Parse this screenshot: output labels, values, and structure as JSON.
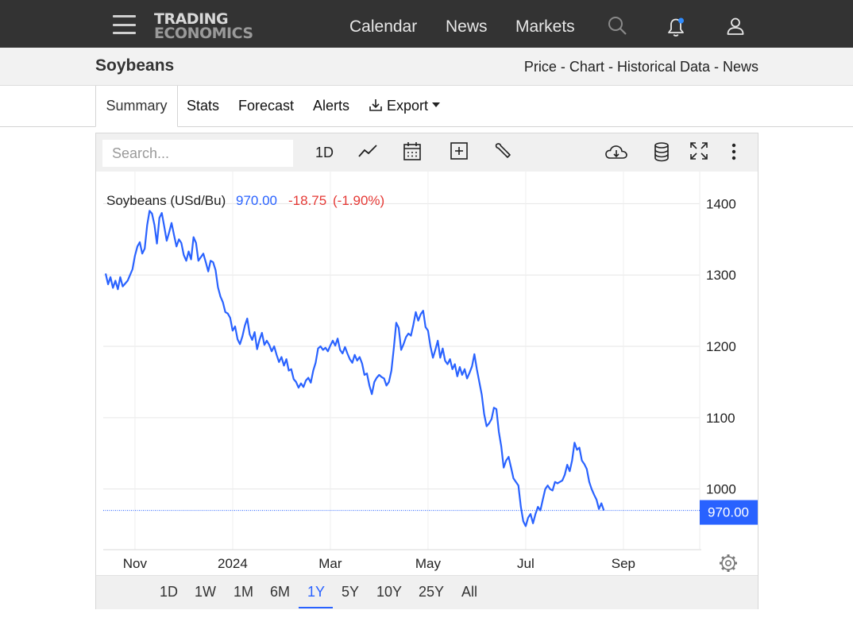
{
  "nav": {
    "logo_line1": "TRADING",
    "logo_line2": "ECONOMICS",
    "links": [
      "Calendar",
      "News",
      "Markets"
    ]
  },
  "header": {
    "title": "Soybeans",
    "links": [
      "Price",
      "Chart",
      "Historical Data",
      "News"
    ],
    "separator": " - "
  },
  "tabs": {
    "summary": "Summary",
    "stats": "Stats",
    "forecast": "Forecast",
    "alerts": "Alerts",
    "export": "Export"
  },
  "toolbar": {
    "search_placeholder": "Search...",
    "interval": "1D"
  },
  "legend": {
    "name": "Soybeans (USd/Bu)",
    "last": "970.00",
    "change": "-18.75",
    "change_pct": "(-1.90%)"
  },
  "ranges": [
    "1D",
    "1W",
    "1M",
    "6M",
    "1Y",
    "5Y",
    "10Y",
    "25Y",
    "All"
  ],
  "active_range": "1Y",
  "colors": {
    "line": "#2962ff",
    "negative": "#e53935",
    "topbar": "#333333",
    "notification_dot": "#2f8cff"
  },
  "chart_data": {
    "type": "line",
    "title": "",
    "ylabel": "",
    "xlabel": "",
    "series_name": "Soybeans (USd/Bu)",
    "ylim": [
      915,
      1445
    ],
    "y_ticks": [
      1000,
      1100,
      1200,
      1300,
      1400
    ],
    "x_ticks": [
      {
        "label": "Nov",
        "value": 0.6
      },
      {
        "label": "2024",
        "value": 2.6
      },
      {
        "label": "Mar",
        "value": 4.6
      },
      {
        "label": "May",
        "value": 6.6
      },
      {
        "label": "Jul",
        "value": 8.6
      },
      {
        "label": "Sep",
        "value": 10.6
      }
    ],
    "x_unit": "months since mid-Oct 2023",
    "current_value": 970.0,
    "grid": true,
    "points": [
      [
        0.0,
        1302
      ],
      [
        0.05,
        1287
      ],
      [
        0.1,
        1297
      ],
      [
        0.15,
        1282
      ],
      [
        0.2,
        1292
      ],
      [
        0.25,
        1280
      ],
      [
        0.3,
        1297
      ],
      [
        0.35,
        1284
      ],
      [
        0.45,
        1292
      ],
      [
        0.55,
        1308
      ],
      [
        0.6,
        1327
      ],
      [
        0.65,
        1340
      ],
      [
        0.7,
        1346
      ],
      [
        0.75,
        1330
      ],
      [
        0.8,
        1337
      ],
      [
        0.85,
        1370
      ],
      [
        0.9,
        1390
      ],
      [
        0.95,
        1386
      ],
      [
        1.0,
        1370
      ],
      [
        1.05,
        1344
      ],
      [
        1.1,
        1380
      ],
      [
        1.15,
        1387
      ],
      [
        1.2,
        1368
      ],
      [
        1.25,
        1348
      ],
      [
        1.3,
        1360
      ],
      [
        1.35,
        1373
      ],
      [
        1.4,
        1356
      ],
      [
        1.45,
        1340
      ],
      [
        1.5,
        1350
      ],
      [
        1.55,
        1345
      ],
      [
        1.6,
        1328
      ],
      [
        1.65,
        1320
      ],
      [
        1.7,
        1333
      ],
      [
        1.75,
        1322
      ],
      [
        1.8,
        1353
      ],
      [
        1.85,
        1345
      ],
      [
        1.9,
        1320
      ],
      [
        1.95,
        1325
      ],
      [
        2.0,
        1330
      ],
      [
        2.05,
        1318
      ],
      [
        2.1,
        1305
      ],
      [
        2.15,
        1320
      ],
      [
        2.2,
        1318
      ],
      [
        2.25,
        1307
      ],
      [
        2.3,
        1283
      ],
      [
        2.35,
        1270
      ],
      [
        2.4,
        1262
      ],
      [
        2.45,
        1248
      ],
      [
        2.5,
        1246
      ],
      [
        2.55,
        1240
      ],
      [
        2.6,
        1222
      ],
      [
        2.65,
        1228
      ],
      [
        2.7,
        1210
      ],
      [
        2.75,
        1203
      ],
      [
        2.8,
        1214
      ],
      [
        2.85,
        1229
      ],
      [
        2.9,
        1239
      ],
      [
        2.95,
        1217
      ],
      [
        3.0,
        1209
      ],
      [
        3.05,
        1220
      ],
      [
        3.1,
        1196
      ],
      [
        3.15,
        1209
      ],
      [
        3.2,
        1219
      ],
      [
        3.25,
        1202
      ],
      [
        3.3,
        1208
      ],
      [
        3.35,
        1202
      ],
      [
        3.4,
        1193
      ],
      [
        3.45,
        1200
      ],
      [
        3.5,
        1188
      ],
      [
        3.55,
        1178
      ],
      [
        3.6,
        1185
      ],
      [
        3.65,
        1173
      ],
      [
        3.7,
        1182
      ],
      [
        3.75,
        1166
      ],
      [
        3.8,
        1168
      ],
      [
        3.85,
        1154
      ],
      [
        3.9,
        1150
      ],
      [
        3.95,
        1142
      ],
      [
        4.0,
        1148
      ],
      [
        4.05,
        1143
      ],
      [
        4.1,
        1152
      ],
      [
        4.15,
        1156
      ],
      [
        4.2,
        1149
      ],
      [
        4.25,
        1166
      ],
      [
        4.3,
        1177
      ],
      [
        4.35,
        1197
      ],
      [
        4.4,
        1200
      ],
      [
        4.45,
        1195
      ],
      [
        4.5,
        1198
      ],
      [
        4.55,
        1193
      ],
      [
        4.6,
        1201
      ],
      [
        4.65,
        1208
      ],
      [
        4.7,
        1201
      ],
      [
        4.75,
        1211
      ],
      [
        4.8,
        1195
      ],
      [
        4.85,
        1190
      ],
      [
        4.9,
        1199
      ],
      [
        4.95,
        1190
      ],
      [
        5.0,
        1182
      ],
      [
        5.05,
        1177
      ],
      [
        5.1,
        1188
      ],
      [
        5.15,
        1180
      ],
      [
        5.2,
        1185
      ],
      [
        5.25,
        1176
      ],
      [
        5.3,
        1160
      ],
      [
        5.35,
        1162
      ],
      [
        5.4,
        1145
      ],
      [
        5.45,
        1133
      ],
      [
        5.5,
        1150
      ],
      [
        5.55,
        1156
      ],
      [
        5.6,
        1160
      ],
      [
        5.65,
        1157
      ],
      [
        5.7,
        1155
      ],
      [
        5.75,
        1145
      ],
      [
        5.8,
        1150
      ],
      [
        5.85,
        1166
      ],
      [
        5.9,
        1198
      ],
      [
        5.95,
        1233
      ],
      [
        6.0,
        1226
      ],
      [
        6.05,
        1195
      ],
      [
        6.1,
        1203
      ],
      [
        6.15,
        1213
      ],
      [
        6.2,
        1218
      ],
      [
        6.25,
        1215
      ],
      [
        6.3,
        1230
      ],
      [
        6.35,
        1248
      ],
      [
        6.4,
        1236
      ],
      [
        6.45,
        1245
      ],
      [
        6.5,
        1250
      ],
      [
        6.55,
        1227
      ],
      [
        6.6,
        1222
      ],
      [
        6.65,
        1200
      ],
      [
        6.7,
        1184
      ],
      [
        6.75,
        1195
      ],
      [
        6.8,
        1208
      ],
      [
        6.85,
        1184
      ],
      [
        6.9,
        1197
      ],
      [
        6.95,
        1180
      ],
      [
        7.0,
        1175
      ],
      [
        7.05,
        1182
      ],
      [
        7.1,
        1168
      ],
      [
        7.15,
        1175
      ],
      [
        7.2,
        1158
      ],
      [
        7.25,
        1171
      ],
      [
        7.3,
        1160
      ],
      [
        7.35,
        1168
      ],
      [
        7.4,
        1155
      ],
      [
        7.45,
        1163
      ],
      [
        7.5,
        1172
      ],
      [
        7.55,
        1189
      ],
      [
        7.6,
        1168
      ],
      [
        7.65,
        1150
      ],
      [
        7.7,
        1132
      ],
      [
        7.75,
        1105
      ],
      [
        7.8,
        1088
      ],
      [
        7.85,
        1092
      ],
      [
        7.9,
        1098
      ],
      [
        7.95,
        1114
      ],
      [
        8.0,
        1112
      ],
      [
        8.05,
        1080
      ],
      [
        8.1,
        1060
      ],
      [
        8.15,
        1030
      ],
      [
        8.2,
        1040
      ],
      [
        8.25,
        1045
      ],
      [
        8.3,
        1030
      ],
      [
        8.35,
        1015
      ],
      [
        8.4,
        1010
      ],
      [
        8.45,
        1005
      ],
      [
        8.5,
        975
      ],
      [
        8.55,
        955
      ],
      [
        8.6,
        948
      ],
      [
        8.65,
        960
      ],
      [
        8.7,
        965
      ],
      [
        8.75,
        952
      ],
      [
        8.8,
        965
      ],
      [
        8.85,
        975
      ],
      [
        8.9,
        970
      ],
      [
        8.95,
        985
      ],
      [
        9.0,
        1000
      ],
      [
        9.05,
        1005
      ],
      [
        9.1,
        1000
      ],
      [
        9.15,
        998
      ],
      [
        9.2,
        1010
      ],
      [
        9.25,
        1008
      ],
      [
        9.3,
        1010
      ],
      [
        9.35,
        1012
      ],
      [
        9.4,
        1020
      ],
      [
        9.45,
        1034
      ],
      [
        9.5,
        1025
      ],
      [
        9.55,
        1040
      ],
      [
        9.6,
        1065
      ],
      [
        9.65,
        1055
      ],
      [
        9.7,
        1058
      ],
      [
        9.75,
        1040
      ],
      [
        9.8,
        1035
      ],
      [
        9.85,
        1028
      ],
      [
        9.9,
        1010
      ],
      [
        9.95,
        1000
      ],
      [
        10.0,
        992
      ],
      [
        10.05,
        985
      ],
      [
        10.1,
        972
      ],
      [
        10.15,
        980
      ],
      [
        10.2,
        970
      ]
    ]
  }
}
